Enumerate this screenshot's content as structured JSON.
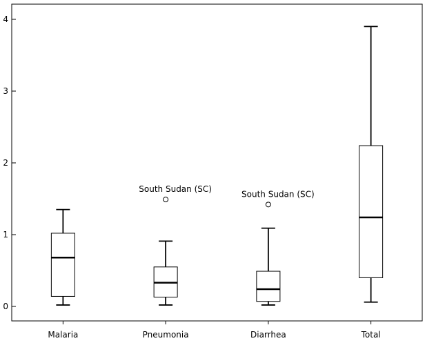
{
  "chart_data": {
    "type": "boxplot",
    "title": "",
    "xlabel": "",
    "ylabel": "",
    "ylim": [
      -0.22,
      4.1
    ],
    "yticks": [
      0,
      1,
      2,
      3,
      4
    ],
    "grid": false,
    "categories": [
      "Malaria",
      "Pneumonia",
      "Diarrhea",
      "Total"
    ],
    "boxes": [
      {
        "category": "Malaria",
        "min": 0.02,
        "q1": 0.14,
        "median": 0.68,
        "q3": 1.02,
        "max": 1.35,
        "outliers": []
      },
      {
        "category": "Pneumonia",
        "min": 0.02,
        "q1": 0.13,
        "median": 0.33,
        "q3": 0.55,
        "max": 0.91,
        "outliers": [
          {
            "value": 1.49,
            "label": "South Sudan (SC)"
          }
        ]
      },
      {
        "category": "Diarrhea",
        "min": 0.02,
        "q1": 0.07,
        "median": 0.24,
        "q3": 0.49,
        "max": 1.09,
        "outliers": [
          {
            "value": 1.42,
            "label": "South Sudan (SC)"
          }
        ]
      },
      {
        "category": "Total",
        "min": 0.06,
        "q1": 0.4,
        "median": 1.24,
        "q3": 2.24,
        "max": 3.9,
        "outliers": []
      }
    ],
    "colors": {
      "box_fill": "#ffffff",
      "stroke": "#000000",
      "background": "#ffffff"
    }
  }
}
